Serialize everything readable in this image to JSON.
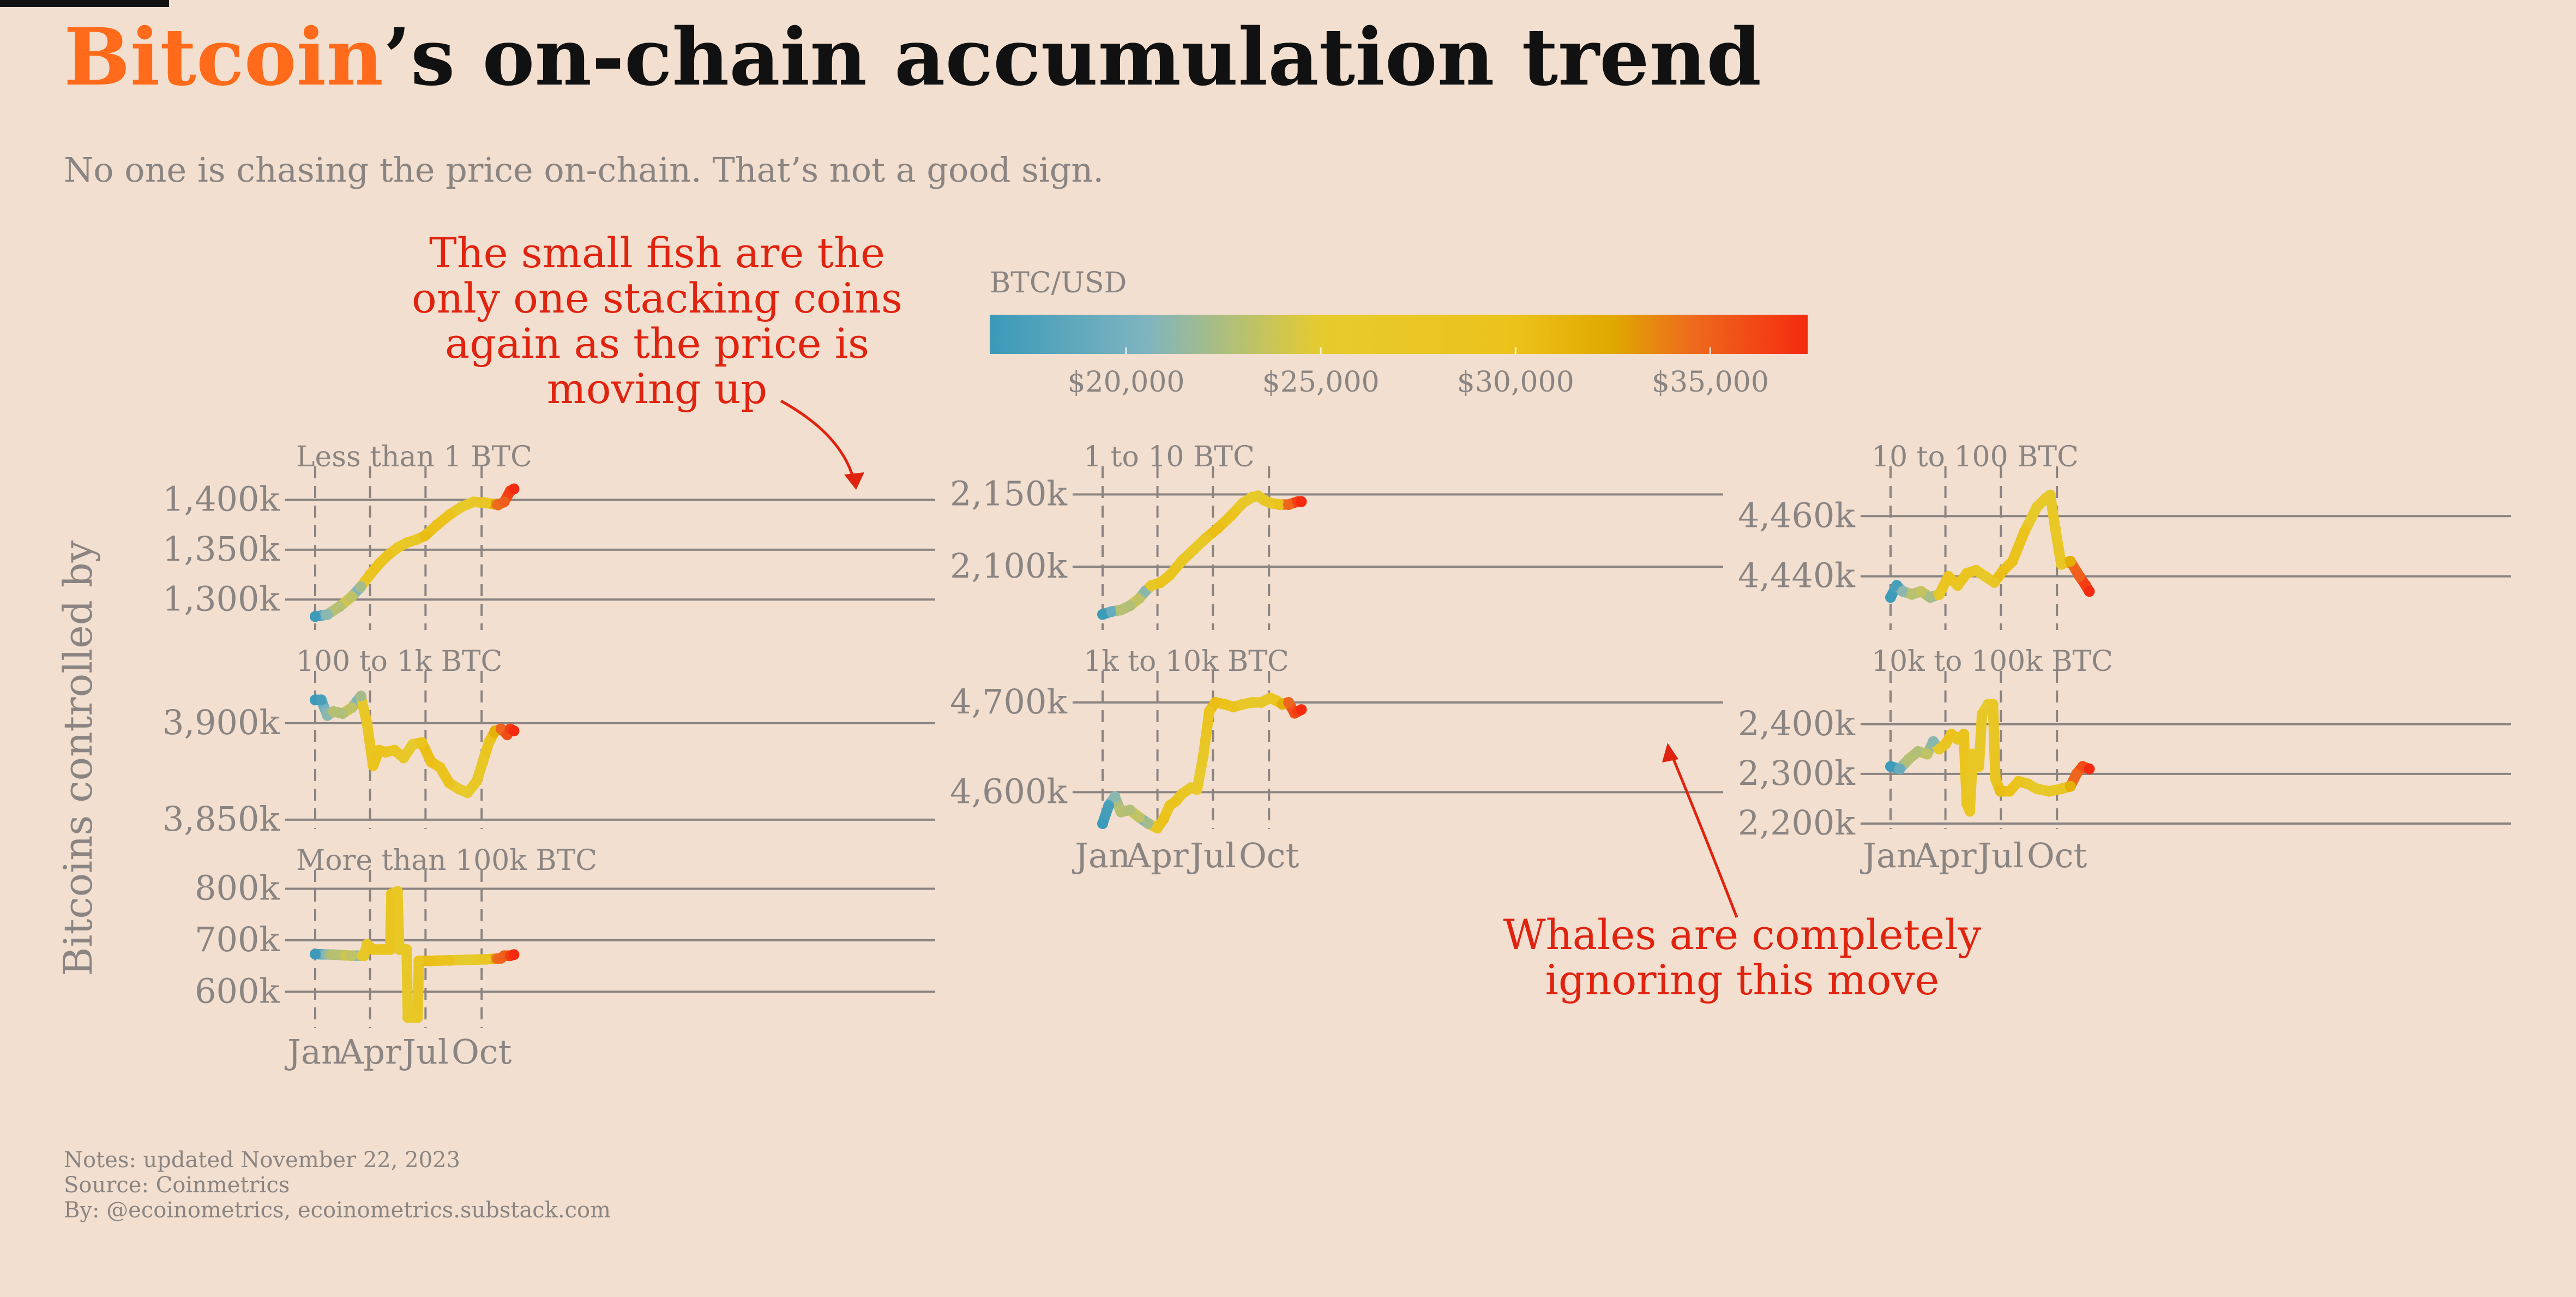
{
  "title": {
    "accent": "Bitcoin",
    "rest": "’s on-chain accumulation trend"
  },
  "subtitle": "No one is chasing the price on-chain. That’s not a good sign.",
  "y_axis_label": "Bitcoins controlled by",
  "colors": {
    "background": "#f2dfcf",
    "accent": "#ff6b1a",
    "annotation": "#e0230f",
    "muted": "#8a8482",
    "grid": "#8a8482"
  },
  "colorbar": {
    "title": "BTC/USD",
    "labels": [
      "$20,000",
      "$25,000",
      "$30,000",
      "$35,000"
    ],
    "range": [
      16500,
      37500
    ],
    "stops": [
      [
        16500,
        "#3a9ab8"
      ],
      [
        20500,
        "#7fb4c0"
      ],
      [
        25000,
        "#e6cb2e"
      ],
      [
        30000,
        "#ecc21a"
      ],
      [
        32500,
        "#e0a800"
      ],
      [
        34500,
        "#ee6b1e"
      ],
      [
        37500,
        "#f52a0e"
      ]
    ]
  },
  "x_ticks": [
    "Jan",
    "Apr",
    "Jul",
    "Oct"
  ],
  "annotations": {
    "small_fish": [
      "The small fish are the",
      "only one stacking coins",
      "again as the price is",
      "moving up"
    ],
    "whales": [
      "Whales are completely",
      "ignoring this move"
    ]
  },
  "footer": {
    "notes": "Notes: updated November 22, 2023",
    "source": "Source: Coinmetrics",
    "by": "By: @ecoinometrics, ecoinometrics.substack.com"
  },
  "chart_data": {
    "type": "line",
    "x_unit": "day of year 2023 (0 = Jan 1)",
    "price_btcusd": [
      [
        0,
        16600
      ],
      [
        10,
        17300
      ],
      [
        20,
        21000
      ],
      [
        31,
        23100
      ],
      [
        45,
        22700
      ],
      [
        55,
        24300
      ],
      [
        65,
        22300
      ],
      [
        73,
        20200
      ],
      [
        80,
        26900
      ],
      [
        90,
        28200
      ],
      [
        100,
        29800
      ],
      [
        110,
        28500
      ],
      [
        120,
        29300
      ],
      [
        135,
        27200
      ],
      [
        150,
        26800
      ],
      [
        160,
        25700
      ],
      [
        170,
        27800
      ],
      [
        180,
        30500
      ],
      [
        190,
        30300
      ],
      [
        200,
        29900
      ],
      [
        210,
        29300
      ],
      [
        220,
        29300
      ],
      [
        230,
        26400
      ],
      [
        240,
        26100
      ],
      [
        250,
        25800
      ],
      [
        260,
        26400
      ],
      [
        270,
        27000
      ],
      [
        280,
        27800
      ],
      [
        292,
        30000
      ],
      [
        300,
        34500
      ],
      [
        310,
        35100
      ],
      [
        320,
        36600
      ],
      [
        326,
        37500
      ]
    ],
    "panels": [
      {
        "name": "Less than 1 BTC",
        "ylim": [
          1275000,
          1420000
        ],
        "yticks": [
          1300000,
          1350000,
          1400000
        ],
        "ytick_labels": [
          "1,300k",
          "1,350k",
          "1,400k"
        ],
        "points": [
          [
            0,
            1283000
          ],
          [
            20,
            1285000
          ],
          [
            40,
            1293000
          ],
          [
            60,
            1303000
          ],
          [
            75,
            1313000
          ],
          [
            90,
            1325000
          ],
          [
            105,
            1336000
          ],
          [
            120,
            1345000
          ],
          [
            135,
            1352000
          ],
          [
            150,
            1357000
          ],
          [
            165,
            1360000
          ],
          [
            180,
            1364000
          ],
          [
            200,
            1375000
          ],
          [
            220,
            1385000
          ],
          [
            240,
            1393000
          ],
          [
            260,
            1398000
          ],
          [
            280,
            1397000
          ],
          [
            300,
            1395000
          ],
          [
            310,
            1398000
          ],
          [
            320,
            1409000
          ],
          [
            326,
            1411000
          ]
        ]
      },
      {
        "name": "1 to 10 BTC",
        "ylim": [
          2060000,
          2160000
        ],
        "yticks": [
          2100000,
          2150000
        ],
        "ytick_labels": [
          "2,100k",
          "2,150k"
        ],
        "points": [
          [
            0,
            2067000
          ],
          [
            15,
            2069000
          ],
          [
            30,
            2070000
          ],
          [
            45,
            2073000
          ],
          [
            60,
            2078000
          ],
          [
            70,
            2083000
          ],
          [
            80,
            2087000
          ],
          [
            95,
            2089000
          ],
          [
            110,
            2094000
          ],
          [
            130,
            2104000
          ],
          [
            150,
            2112000
          ],
          [
            170,
            2120000
          ],
          [
            190,
            2127000
          ],
          [
            210,
            2135000
          ],
          [
            230,
            2144000
          ],
          [
            245,
            2148000
          ],
          [
            255,
            2149000
          ],
          [
            265,
            2146000
          ],
          [
            275,
            2144000
          ],
          [
            290,
            2143000
          ],
          [
            305,
            2143000
          ],
          [
            320,
            2145000
          ],
          [
            326,
            2145000
          ]
        ]
      },
      {
        "name": "10 to 100 BTC",
        "ylim": [
          4424000,
          4472000
        ],
        "yticks": [
          4440000,
          4460000
        ],
        "ytick_labels": [
          "4,440k",
          "4,460k"
        ],
        "points": [
          [
            0,
            4433000
          ],
          [
            10,
            4437000
          ],
          [
            20,
            4435000
          ],
          [
            35,
            4434000
          ],
          [
            50,
            4435000
          ],
          [
            65,
            4433000
          ],
          [
            80,
            4434000
          ],
          [
            95,
            4440000
          ],
          [
            110,
            4437000
          ],
          [
            125,
            4441000
          ],
          [
            140,
            4442000
          ],
          [
            155,
            4440000
          ],
          [
            170,
            4438000
          ],
          [
            185,
            4442000
          ],
          [
            200,
            4445000
          ],
          [
            220,
            4455000
          ],
          [
            240,
            4463000
          ],
          [
            255,
            4466000
          ],
          [
            262,
            4467000
          ],
          [
            270,
            4456000
          ],
          [
            280,
            4444000
          ],
          [
            295,
            4445000
          ],
          [
            310,
            4440000
          ],
          [
            320,
            4437000
          ],
          [
            326,
            4435000
          ]
        ]
      },
      {
        "name": "100 to 1k BTC",
        "ylim": [
          3848000,
          3920000
        ],
        "yticks": [
          3850000,
          3900000
        ],
        "ytick_labels": [
          "3,850k",
          "3,900k"
        ],
        "points": [
          [
            0,
            3912000
          ],
          [
            10,
            3912000
          ],
          [
            20,
            3904000
          ],
          [
            30,
            3906000
          ],
          [
            45,
            3905000
          ],
          [
            60,
            3908000
          ],
          [
            75,
            3914000
          ],
          [
            85,
            3900000
          ],
          [
            95,
            3878000
          ],
          [
            105,
            3886000
          ],
          [
            115,
            3885000
          ],
          [
            130,
            3886000
          ],
          [
            145,
            3882000
          ],
          [
            160,
            3889000
          ],
          [
            175,
            3890000
          ],
          [
            190,
            3880000
          ],
          [
            205,
            3877000
          ],
          [
            220,
            3869000
          ],
          [
            235,
            3866000
          ],
          [
            250,
            3864000
          ],
          [
            265,
            3870000
          ],
          [
            275,
            3880000
          ],
          [
            285,
            3890000
          ],
          [
            295,
            3896000
          ],
          [
            305,
            3897000
          ],
          [
            315,
            3894000
          ],
          [
            320,
            3897000
          ],
          [
            326,
            3896000
          ]
        ]
      },
      {
        "name": "1k to 10k BTC",
        "ylim": [
          4565000,
          4720000
        ],
        "yticks": [
          4600000,
          4700000
        ],
        "ytick_labels": [
          "4,600k",
          "4,700k"
        ],
        "points": [
          [
            0,
            4565000
          ],
          [
            10,
            4585000
          ],
          [
            20,
            4595000
          ],
          [
            30,
            4578000
          ],
          [
            45,
            4580000
          ],
          [
            60,
            4572000
          ],
          [
            75,
            4565000
          ],
          [
            90,
            4560000
          ],
          [
            100,
            4570000
          ],
          [
            110,
            4585000
          ],
          [
            120,
            4590000
          ],
          [
            130,
            4598000
          ],
          [
            145,
            4605000
          ],
          [
            155,
            4603000
          ],
          [
            165,
            4640000
          ],
          [
            175,
            4690000
          ],
          [
            185,
            4700000
          ],
          [
            200,
            4698000
          ],
          [
            215,
            4695000
          ],
          [
            230,
            4698000
          ],
          [
            245,
            4700000
          ],
          [
            260,
            4700000
          ],
          [
            275,
            4705000
          ],
          [
            285,
            4702000
          ],
          [
            295,
            4698000
          ],
          [
            305,
            4700000
          ],
          [
            315,
            4688000
          ],
          [
            320,
            4690000
          ],
          [
            326,
            4692000
          ]
        ]
      },
      {
        "name": "10k to 100k BTC",
        "ylim": [
          2200000,
          2480000
        ],
        "yticks": [
          2200000,
          2300000,
          2400000
        ],
        "ytick_labels": [
          "2,200k",
          "2,300k",
          "2,400k"
        ],
        "points": [
          [
            0,
            2315000
          ],
          [
            15,
            2310000
          ],
          [
            30,
            2330000
          ],
          [
            45,
            2345000
          ],
          [
            60,
            2340000
          ],
          [
            70,
            2365000
          ],
          [
            80,
            2350000
          ],
          [
            90,
            2360000
          ],
          [
            100,
            2380000
          ],
          [
            110,
            2370000
          ],
          [
            120,
            2380000
          ],
          [
            125,
            2240000
          ],
          [
            130,
            2225000
          ],
          [
            135,
            2340000
          ],
          [
            145,
            2315000
          ],
          [
            150,
            2420000
          ],
          [
            160,
            2440000
          ],
          [
            168,
            2440000
          ],
          [
            172,
            2290000
          ],
          [
            180,
            2265000
          ],
          [
            195,
            2265000
          ],
          [
            210,
            2285000
          ],
          [
            225,
            2280000
          ],
          [
            240,
            2270000
          ],
          [
            260,
            2265000
          ],
          [
            280,
            2270000
          ],
          [
            295,
            2275000
          ],
          [
            305,
            2300000
          ],
          [
            315,
            2315000
          ],
          [
            326,
            2310000
          ]
        ]
      },
      {
        "name": "More than 100k BTC",
        "ylim": [
          540000,
          810000
        ],
        "yticks": [
          600000,
          700000,
          800000
        ],
        "ytick_labels": [
          "600k",
          "700k",
          "800k"
        ],
        "points": [
          [
            0,
            673000
          ],
          [
            30,
            672000
          ],
          [
            60,
            670000
          ],
          [
            80,
            670000
          ],
          [
            85,
            692000
          ],
          [
            95,
            682000
          ],
          [
            110,
            682000
          ],
          [
            123,
            682000
          ],
          [
            125,
            790000
          ],
          [
            135,
            795000
          ],
          [
            138,
            682000
          ],
          [
            150,
            682000
          ],
          [
            152,
            550000
          ],
          [
            165,
            550000
          ],
          [
            168,
            550000
          ],
          [
            170,
            660000
          ],
          [
            190,
            660000
          ],
          [
            220,
            661000
          ],
          [
            250,
            662000
          ],
          [
            280,
            663000
          ],
          [
            305,
            665000
          ],
          [
            310,
            670000
          ],
          [
            320,
            670000
          ],
          [
            326,
            672000
          ]
        ]
      }
    ]
  }
}
